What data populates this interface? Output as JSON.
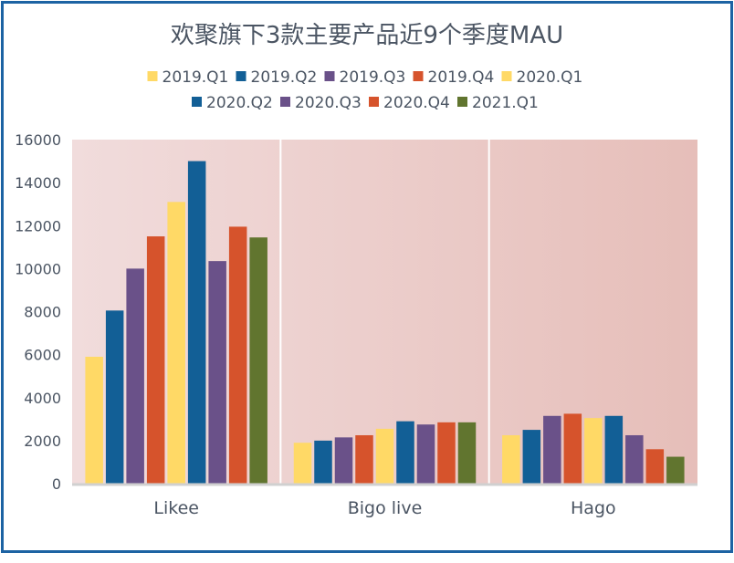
{
  "colors": {
    "2019.Q1": "#ffd966",
    "2019.Q2": "#125f96",
    "2019.Q3": "#6a5189",
    "2019.Q4": "#d6532c",
    "2020.Q1": "#ffd966",
    "2020.Q2": "#125f96",
    "2020.Q3": "#6a5189",
    "2020.Q4": "#d6532c",
    "2021.Q1": "#61752f",
    "plot_bg_left": "#f1dcdc",
    "plot_bg_right": "#e6beb9",
    "frame": "#1d63a3"
  },
  "chart_data": {
    "type": "bar",
    "title": "欢聚旗下3款主要产品近9个季度MAU",
    "categories": [
      "Likee",
      "Bigo live",
      "Hago"
    ],
    "series": [
      {
        "name": "2019.Q1",
        "values": [
          5900,
          1900,
          2250
        ]
      },
      {
        "name": "2019.Q2",
        "values": [
          8050,
          2000,
          2500
        ]
      },
      {
        "name": "2019.Q3",
        "values": [
          10000,
          2150,
          3150
        ]
      },
      {
        "name": "2019.Q4",
        "values": [
          11500,
          2250,
          3250
        ]
      },
      {
        "name": "2020.Q1",
        "values": [
          13100,
          2550,
          3050
        ]
      },
      {
        "name": "2020.Q2",
        "values": [
          15000,
          2900,
          3150
        ]
      },
      {
        "name": "2020.Q3",
        "values": [
          10350,
          2750,
          2250
        ]
      },
      {
        "name": "2020.Q4",
        "values": [
          11950,
          2850,
          1600
        ]
      },
      {
        "name": "2021.Q1",
        "values": [
          11450,
          2850,
          1250
        ]
      }
    ],
    "yticks": [
      "0",
      "2000",
      "4000",
      "6000",
      "8000",
      "10000",
      "12000",
      "14000",
      "16000"
    ],
    "ylim": [
      0,
      16000
    ],
    "xlabel": "",
    "ylabel": "",
    "legend": "top"
  }
}
